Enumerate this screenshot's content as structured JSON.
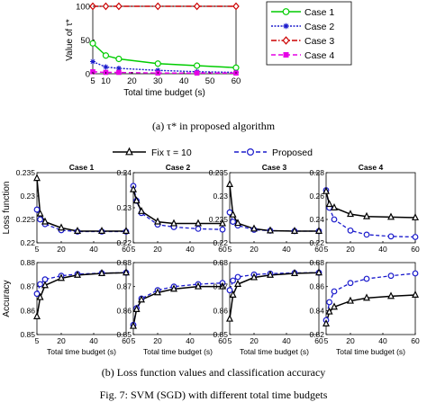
{
  "colors": {
    "green": "#00cc00",
    "blue": "#1a1acc",
    "red": "#cc0000",
    "magenta": "#e600e6",
    "black": "#000000"
  },
  "chart_data": [
    {
      "type": "line",
      "panel": "a",
      "ylabel": "Value of τ*",
      "xlabel": "Total time budget (s)",
      "caption": "(a) τ* in proposed algorithm",
      "x": [
        5,
        10,
        15,
        30,
        45,
        60
      ],
      "xticks": [
        "5",
        "10",
        "20",
        "30",
        "40",
        "50",
        "60"
      ],
      "yticks": [
        "0",
        "50",
        "100"
      ],
      "xlim": [
        5,
        60
      ],
      "ylim": [
        0,
        100
      ],
      "grid": false,
      "legend": "right",
      "series": [
        {
          "name": "Case 1",
          "values": [
            45,
            27,
            22,
            15,
            12,
            9
          ]
        },
        {
          "name": "Case 2",
          "values": [
            18,
            10,
            8,
            5,
            3,
            2
          ]
        },
        {
          "name": "Case 3",
          "values": [
            100,
            100,
            100,
            100,
            100,
            100
          ]
        },
        {
          "name": "Case 4",
          "values": [
            3,
            2,
            2,
            1,
            1,
            1
          ]
        }
      ]
    },
    {
      "type": "line",
      "panel": "b",
      "caption": "(b) Loss function values and classification accuracy",
      "legend": [
        "Fix τ = 10",
        "Proposed"
      ],
      "ylabel_top": "Loss function",
      "ylabel_bottom": "Accuracy",
      "xlabel": "Total time budget (s)",
      "x": [
        5,
        7,
        10,
        20,
        30,
        45,
        60
      ],
      "xticks": [
        "5",
        "20",
        "40",
        "60"
      ],
      "cases": [
        {
          "title": "Case 1",
          "loss": {
            "ylim": [
              0.22,
              0.235
            ],
            "yticks": [
              "0.22",
              "0.225",
              "0.23",
              "0.235"
            ],
            "fix": [
              0.2338,
              0.2262,
              0.2245,
              0.2232,
              0.2225,
              0.2225,
              0.2225
            ],
            "proposed": [
              0.2271,
              0.225,
              0.224,
              0.2227,
              0.2224,
              0.2224,
              0.2224
            ]
          },
          "acc": {
            "ylim": [
              0.85,
              0.88
            ],
            "yticks": [
              "0.85",
              "0.86",
              "0.87",
              "0.88"
            ],
            "fix": [
              0.8575,
              0.8655,
              0.8705,
              0.8735,
              0.8748,
              0.8755,
              0.8758
            ],
            "proposed": [
              0.867,
              0.871,
              0.873,
              0.8745,
              0.8752,
              0.8756,
              0.8758
            ]
          }
        },
        {
          "title": "Case 2",
          "loss": {
            "ylim": [
              0.22,
              0.24
            ],
            "yticks": [
              "0.22",
              "0.23",
              "0.24"
            ],
            "fix": [
              0.2352,
              0.232,
              0.229,
              0.226,
              0.2255,
              0.2255,
              0.2255
            ],
            "proposed": [
              0.2362,
              0.232,
              0.2285,
              0.2252,
              0.2245,
              0.224,
              0.2238
            ]
          },
          "acc": {
            "ylim": [
              0.85,
              0.88
            ],
            "yticks": [
              "0.85",
              "0.86",
              "0.87",
              "0.88"
            ],
            "fix": [
              0.8535,
              0.8605,
              0.8645,
              0.8675,
              0.869,
              0.87,
              0.87
            ],
            "proposed": [
              0.854,
              0.861,
              0.865,
              0.8685,
              0.87,
              0.871,
              0.8715
            ]
          }
        },
        {
          "title": "Case 3",
          "loss": {
            "ylim": [
              0.22,
              0.235
            ],
            "yticks": [
              "0.22",
              "0.225",
              "0.23",
              "0.235"
            ],
            "fix": [
              0.2325,
              0.226,
              0.2242,
              0.223,
              0.2226,
              0.2225,
              0.2225
            ],
            "proposed": [
              0.2265,
              0.2245,
              0.2237,
              0.2228,
              0.2226,
              0.2225,
              0.2225
            ]
          },
          "acc": {
            "ylim": [
              0.85,
              0.88
            ],
            "yticks": [
              "0.85",
              "0.86",
              "0.87",
              "0.88"
            ],
            "fix": [
              0.8565,
              0.8665,
              0.871,
              0.8738,
              0.8748,
              0.8755,
              0.8758
            ],
            "proposed": [
              0.8685,
              0.8725,
              0.874,
              0.875,
              0.8754,
              0.8757,
              0.8758
            ]
          }
        },
        {
          "title": "Case 4",
          "loss": {
            "ylim": [
              0.22,
              0.28
            ],
            "yticks": [
              "0.22",
              "0.24",
              "0.26",
              "0.28"
            ],
            "fix": [
              0.264,
              0.253,
              0.25,
              0.2445,
              0.2425,
              0.242,
              0.2415
            ],
            "proposed": [
              0.265,
              0.25,
              0.24,
              0.2305,
              0.227,
              0.2255,
              0.225
            ]
          },
          "acc": {
            "ylim": [
              0.82,
              0.88
            ],
            "yticks": [
              "0.82",
              "0.84",
              "0.86",
              "0.88"
            ],
            "fix": [
              0.829,
              0.839,
              0.843,
              0.848,
              0.8505,
              0.852,
              0.853
            ],
            "proposed": [
              0.832,
              0.847,
              0.856,
              0.863,
              0.8665,
              0.869,
              0.871
            ]
          }
        }
      ]
    }
  ],
  "figure_caption": "Fig. 7: SVM (SGD) with different total time budgets"
}
